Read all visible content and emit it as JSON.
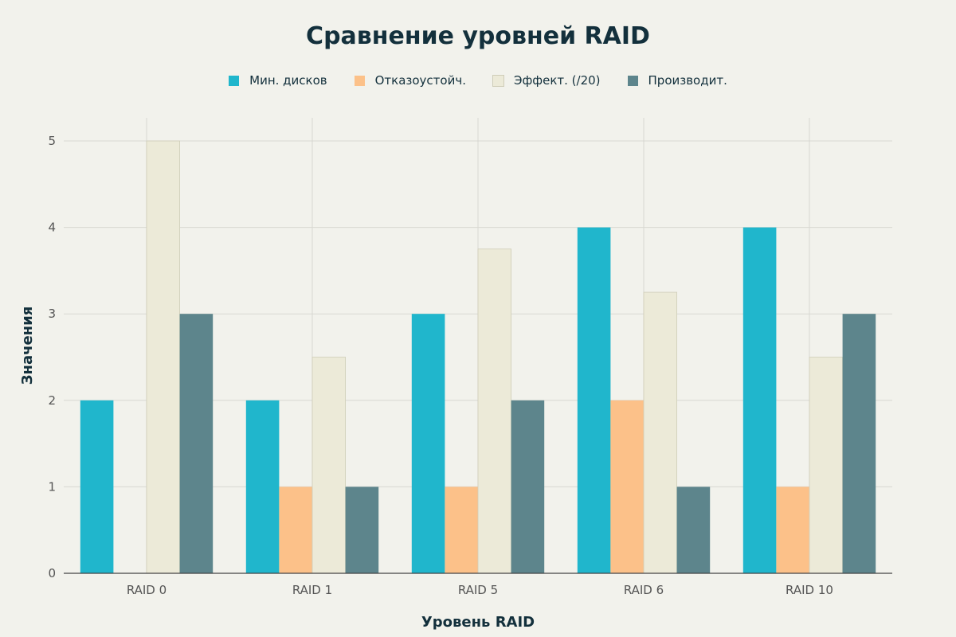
{
  "chart_data": {
    "type": "bar",
    "title": "Сравнение уровней RAID",
    "xlabel": "Уровень RAID",
    "ylabel": "Значения",
    "categories": [
      "RAID 0",
      "RAID 1",
      "RAID 5",
      "RAID 6",
      "RAID 10"
    ],
    "series": [
      {
        "name": "Мин. дисков",
        "color": "#20b6cc",
        "values": [
          2,
          2,
          3,
          4,
          4
        ]
      },
      {
        "name": "Отказоустойч.",
        "color": "#fcc189",
        "values": [
          0,
          1,
          1,
          2,
          1
        ]
      },
      {
        "name": "Эффект. (/20)",
        "color": "#ecead8",
        "values": [
          5,
          2.5,
          3.75,
          3.25,
          2.5
        ]
      },
      {
        "name": "Производит.",
        "color": "#5d858c",
        "values": [
          3,
          1,
          2,
          1,
          3
        ]
      }
    ],
    "ylim": [
      0,
      5.25
    ],
    "yticks": [
      0,
      1,
      2,
      3,
      4,
      5
    ],
    "grid": true,
    "legend_position": "top"
  }
}
